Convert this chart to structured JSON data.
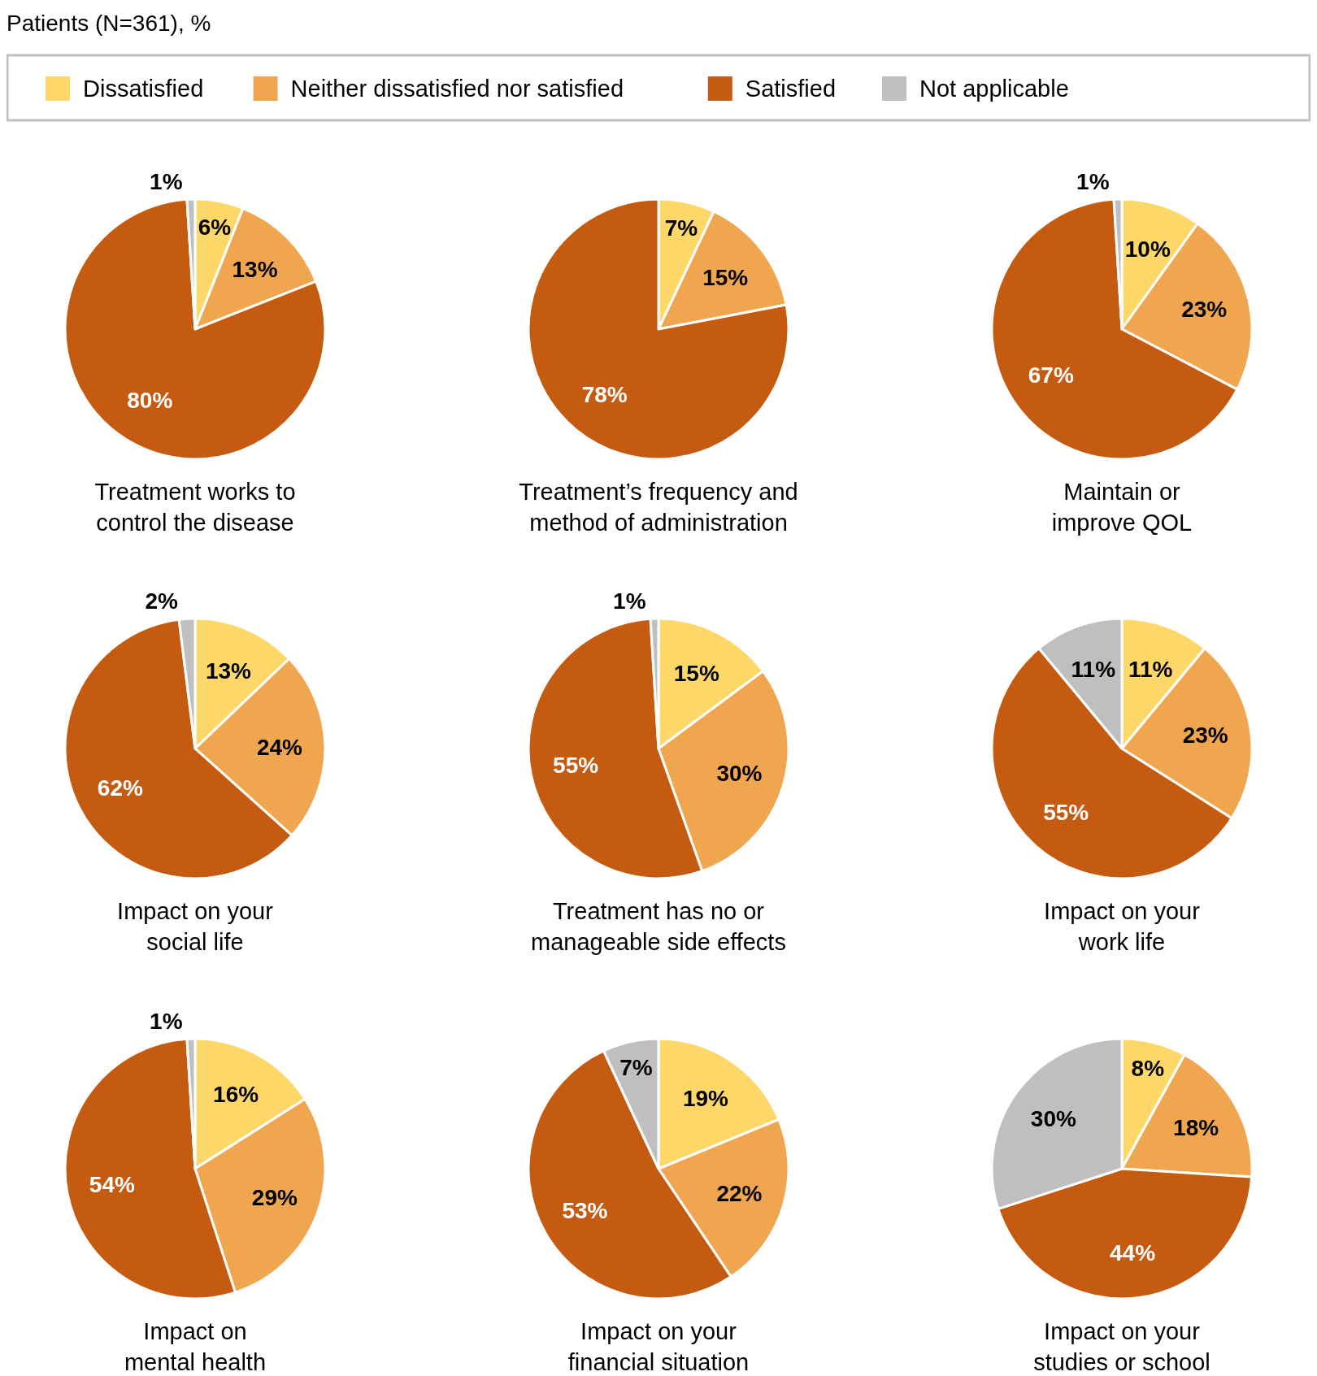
{
  "chart_data": [
    {
      "type": "pie",
      "title": "Treatment works to\ncontrol the disease",
      "annotations": [
        "Patients (N=361), %"
      ],
      "legend": "top",
      "categories": [
        "Dissatisfied",
        "Neither dissatisfied nor satisfied",
        "Satisfied",
        "Not applicable"
      ],
      "values": [
        6,
        13,
        80,
        1
      ],
      "value_labels": [
        "6%",
        "13%",
        "80%",
        "1%"
      ],
      "colors": [
        "#fdd869",
        "#f0a64f",
        "#c55a11",
        "#bfbfbf"
      ]
    },
    {
      "type": "pie",
      "title": "Treatment’s frequency and\nmethod of administration",
      "categories": [
        null,
        null,
        null
      ],
      "values": [
        7,
        15,
        78
      ],
      "value_labels": [
        "7%",
        "15%",
        "78%"
      ],
      "colors": [
        "#fdd869",
        "#f0a64f",
        "#c55a11"
      ]
    },
    {
      "type": "pie",
      "title": "Maintain or\nimprove QOL",
      "categories": [
        null,
        null,
        null,
        null
      ],
      "values": [
        10,
        23,
        67,
        1
      ],
      "value_labels": [
        "10%",
        "23%",
        "67%",
        "1%"
      ],
      "colors": [
        "#fdd869",
        "#f0a64f",
        "#c55a11",
        "#bfbfbf"
      ]
    },
    {
      "type": "pie",
      "title": "Impact on your\nsocial life",
      "categories": [
        null,
        null,
        null,
        null
      ],
      "values": [
        13,
        24,
        62,
        2
      ],
      "value_labels": [
        "13%",
        "24%",
        "62%",
        "2%"
      ],
      "colors": [
        "#fdd869",
        "#f0a64f",
        "#c55a11",
        "#bfbfbf"
      ]
    },
    {
      "type": "pie",
      "title": "Treatment has no or\nmanageable side effects",
      "categories": [
        null,
        null,
        null,
        null
      ],
      "values": [
        15,
        30,
        55,
        1
      ],
      "value_labels": [
        "15%",
        "30%",
        "55%",
        "1%"
      ],
      "colors": [
        "#fdd869",
        "#f0a64f",
        "#c55a11",
        "#bfbfbf"
      ]
    },
    {
      "type": "pie",
      "title": "Impact on your\nwork life",
      "categories": [
        null,
        null,
        null,
        null
      ],
      "values": [
        11,
        23,
        55,
        11
      ],
      "value_labels": [
        "11%",
        "23%",
        "55%",
        "11%"
      ],
      "colors": [
        "#fdd869",
        "#f0a64f",
        "#c55a11",
        "#bfbfbf"
      ]
    },
    {
      "type": "pie",
      "title": "Impact on\nmental health",
      "categories": [
        null,
        null,
        null,
        null
      ],
      "values": [
        16,
        29,
        54,
        1
      ],
      "value_labels": [
        "16%",
        "29%",
        "54%",
        "1%"
      ],
      "colors": [
        "#fdd869",
        "#f0a64f",
        "#c55a11",
        "#bfbfbf"
      ]
    },
    {
      "type": "pie",
      "title": "Impact on your\nfinancial situation",
      "categories": [
        null,
        null,
        null,
        null
      ],
      "values": [
        19,
        22,
        53,
        7
      ],
      "value_labels": [
        "19%",
        "22%",
        "53%",
        "7%"
      ],
      "colors": [
        "#fdd869",
        "#f0a64f",
        "#c55a11",
        "#bfbfbf"
      ]
    },
    {
      "type": "pie",
      "title": "Impact on your\nstudies or school",
      "categories": [
        null,
        null,
        null,
        null
      ],
      "values": [
        8,
        18,
        44,
        30
      ],
      "value_labels": [
        "8%",
        "18%",
        "44%",
        "30%"
      ],
      "colors": [
        "#fdd869",
        "#f0a64f",
        "#c55a11",
        "#bfbfbf"
      ]
    }
  ]
}
